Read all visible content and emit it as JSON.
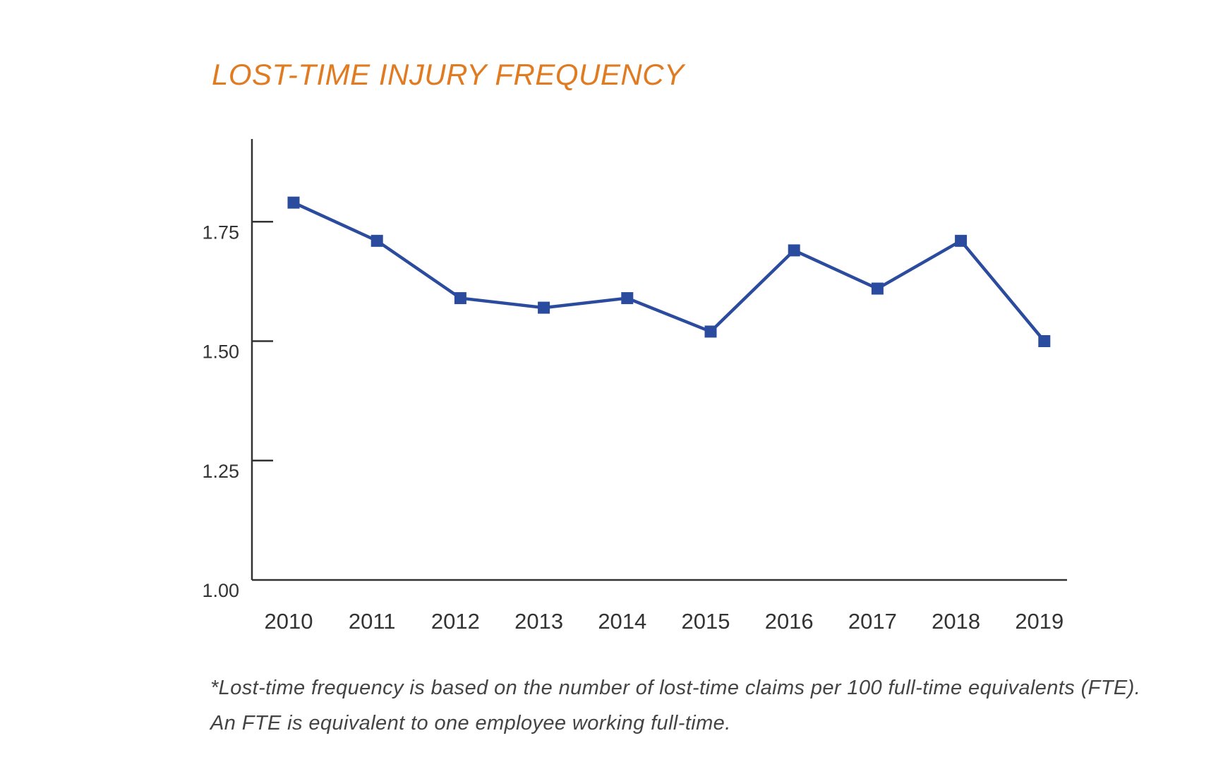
{
  "colors": {
    "title": "#e07b22",
    "series": "#2b4c9e",
    "axis": "#333333",
    "text": "#444444"
  },
  "chart_data": {
    "type": "line",
    "title": "LOST-TIME INJURY FREQUENCY",
    "xlabel": "",
    "ylabel": "",
    "ylim": [
      1.0,
      1.95
    ],
    "yticks": [
      "1.00",
      "1.25",
      "1.50",
      "1.75"
    ],
    "categories": [
      "2010",
      "2011",
      "2012",
      "2013",
      "2014",
      "2015",
      "2016",
      "2017",
      "2018",
      "2019"
    ],
    "series": [
      {
        "values": [
          1.79,
          1.71,
          1.59,
          1.57,
          1.59,
          1.52,
          1.69,
          1.61,
          1.71,
          1.5
        ],
        "marker": "square"
      }
    ],
    "grid": false,
    "legend": "none"
  },
  "footnote": "*Lost-time frequency is based on the number of lost-time claims per 100 full-time equivalents (FTE). An FTE is equivalent to one employee working full-time."
}
